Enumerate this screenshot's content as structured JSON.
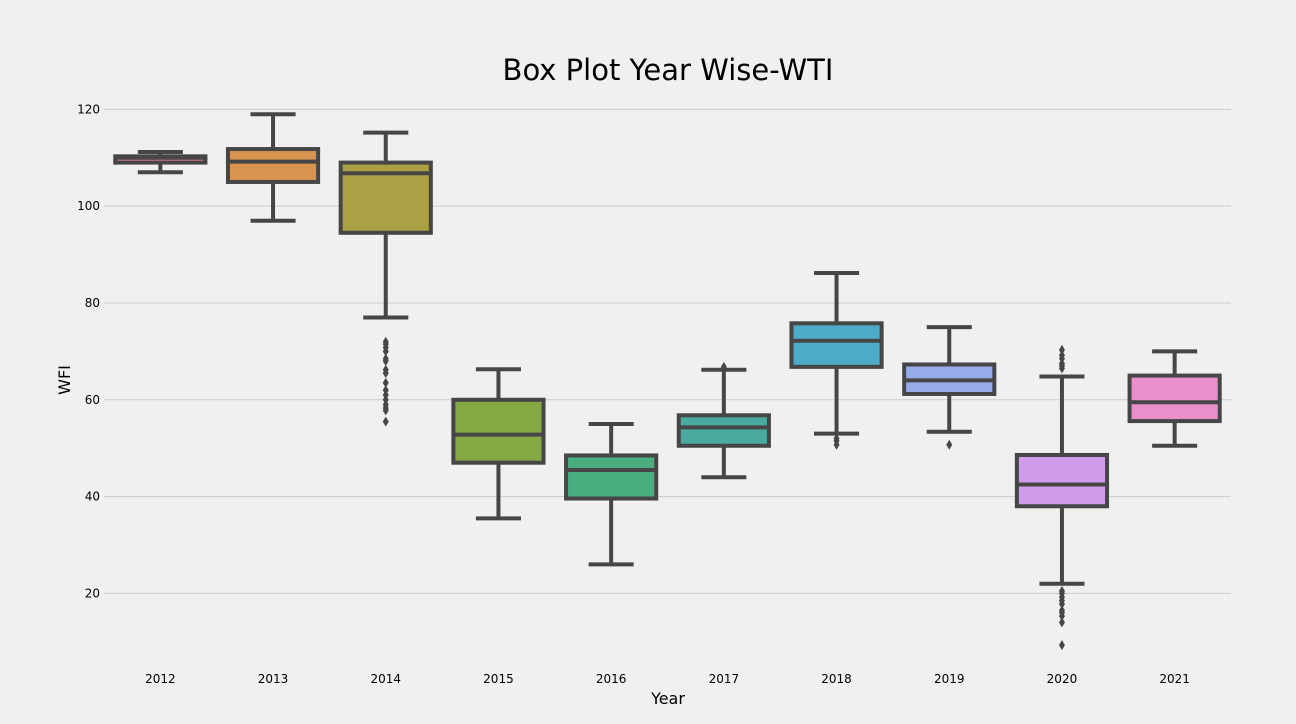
{
  "chart_data": {
    "type": "box",
    "title": "Box Plot Year Wise-WTI",
    "xlabel": "Year",
    "ylabel": "WFI",
    "ylim": [
      5,
      124
    ],
    "yticks": [
      20,
      40,
      60,
      80,
      100,
      120
    ],
    "grid": "horizontal",
    "categories": [
      "2012",
      "2013",
      "2014",
      "2015",
      "2016",
      "2017",
      "2018",
      "2019",
      "2020",
      "2021"
    ],
    "colors": [
      "#e8828f",
      "#d8944e",
      "#aca045",
      "#83a844",
      "#48ae7e",
      "#4aaa9f",
      "#4daac8",
      "#96acea",
      "#d29aea",
      "#ea8fca"
    ],
    "boxes": [
      {
        "whislo": 107,
        "q1": 109,
        "med": 110,
        "q3": 110.3,
        "whishi": 111.2,
        "fliers": []
      },
      {
        "whislo": 97,
        "q1": 105,
        "med": 109.2,
        "q3": 111.8,
        "whishi": 119,
        "fliers": []
      },
      {
        "whislo": 77,
        "q1": 94.5,
        "med": 106.8,
        "q3": 109,
        "whishi": 115.2,
        "fliers": [
          72,
          71.5,
          70.8,
          70,
          68.5,
          68,
          66.2,
          65.5,
          63.5,
          62,
          61,
          60,
          59,
          58.3,
          57.8,
          55.5
        ]
      },
      {
        "whislo": 35.5,
        "q1": 47,
        "med": 52.8,
        "q3": 60,
        "whishi": 66.3,
        "fliers": []
      },
      {
        "whislo": 26,
        "q1": 39.6,
        "med": 45.5,
        "q3": 48.5,
        "whishi": 55,
        "fliers": []
      },
      {
        "whislo": 44,
        "q1": 50.5,
        "med": 54.3,
        "q3": 56.8,
        "whishi": 66.2,
        "fliers": [
          66.8
        ]
      },
      {
        "whislo": 53,
        "q1": 66.8,
        "med": 72.2,
        "q3": 75.8,
        "whishi": 86.2,
        "fliers": [
          52,
          51.5,
          50.7
        ]
      },
      {
        "whislo": 53.4,
        "q1": 61.2,
        "med": 64,
        "q3": 67.3,
        "whishi": 75,
        "fliers": [
          50.7
        ]
      },
      {
        "whislo": 22,
        "q1": 38,
        "med": 42.5,
        "q3": 48.6,
        "whishi": 64.8,
        "fliers": [
          70.3,
          69.2,
          68.5,
          67.5,
          67,
          66.5,
          20.5,
          20,
          19.2,
          18.5,
          17.8,
          16.5,
          16,
          15.3,
          14,
          9.3
        ]
      },
      {
        "whislo": 50.5,
        "q1": 55.6,
        "med": 59.5,
        "q3": 65,
        "whishi": 70,
        "fliers": []
      }
    ]
  }
}
